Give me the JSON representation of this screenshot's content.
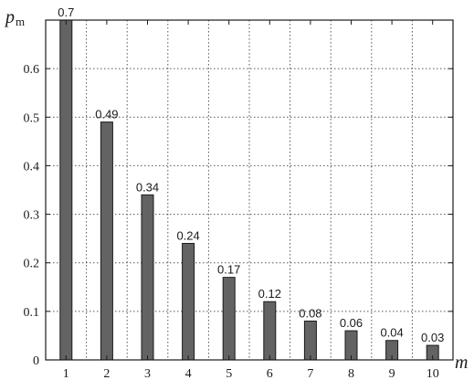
{
  "chart_data": {
    "type": "bar",
    "categories": [
      "1",
      "2",
      "3",
      "4",
      "5",
      "6",
      "7",
      "8",
      "9",
      "10"
    ],
    "values": [
      0.7,
      0.49,
      0.34,
      0.24,
      0.17,
      0.12,
      0.08,
      0.06,
      0.04,
      0.03
    ],
    "data_labels": [
      "0.7",
      "0.49",
      "0.34",
      "0.24",
      "0.17",
      "0.12",
      "0.08",
      "0.06",
      "0.04",
      "0.03"
    ],
    "title": "",
    "xlabel": "m",
    "ylabel": "p",
    "ylabel_subscript": "m",
    "ylim": [
      0,
      0.7
    ],
    "yticks": [
      0,
      0.1,
      0.2,
      0.3,
      0.4,
      0.5,
      0.6
    ],
    "ytick_labels": [
      "0",
      "0.1",
      "0.2",
      "0.3",
      "0.4",
      "0.5",
      "0.6"
    ],
    "grid": true,
    "grid_style": "dotted",
    "legend": "none",
    "colors": {
      "bar": "#636363",
      "bar_edge": "#1a1a1a",
      "axis": "#1a1a1a",
      "grid": "#555555"
    }
  }
}
